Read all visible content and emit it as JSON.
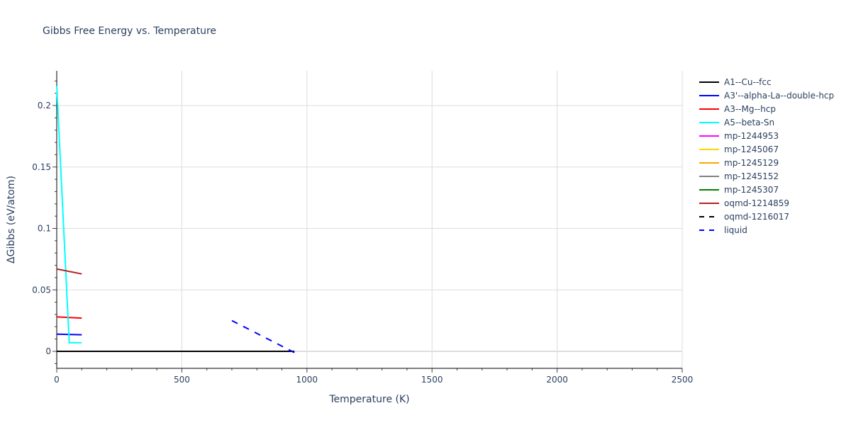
{
  "chart_data": {
    "type": "line",
    "title": "Gibbs Free Energy vs. Temperature",
    "xlabel": "Temperature (K)",
    "ylabel": "ΔGibbs (eV/atom)",
    "xlim": [
      0,
      2500
    ],
    "ylim": [
      -0.013,
      0.228
    ],
    "x_ticks": [
      0,
      500,
      1000,
      1500,
      2000,
      2500
    ],
    "x_tick_labels": [
      "0",
      "500",
      "1000",
      "1500",
      "2000",
      "2500"
    ],
    "y_ticks": [
      0,
      0.05,
      0.1,
      0.15,
      0.2
    ],
    "y_tick_labels": [
      "0",
      "0.05",
      "0.1",
      "0.15",
      "0.2"
    ],
    "grid": true,
    "legend_position": "right",
    "series": [
      {
        "name": "A1--Cu--fcc",
        "color": "#000000",
        "dash": "solid",
        "x": [
          0,
          950
        ],
        "y": [
          0,
          0
        ]
      },
      {
        "name": "A3'--alpha-La--double-hcp",
        "color": "#0000ff",
        "dash": "solid",
        "x": [
          0,
          100
        ],
        "y": [
          0.014,
          0.0135
        ]
      },
      {
        "name": "A3--Mg--hcp",
        "color": "#ff0000",
        "dash": "solid",
        "x": [
          0,
          100
        ],
        "y": [
          0.028,
          0.027
        ]
      },
      {
        "name": "A5--beta-Sn",
        "color": "#00ffff",
        "dash": "solid",
        "x": [
          0,
          50,
          100
        ],
        "y": [
          0.216,
          0.007,
          0.007
        ]
      },
      {
        "name": "mp-1244953",
        "color": "#ff00ff",
        "dash": "solid",
        "x": [],
        "y": []
      },
      {
        "name": "mp-1245067",
        "color": "#ffd700",
        "dash": "solid",
        "x": [],
        "y": []
      },
      {
        "name": "mp-1245129",
        "color": "#ffa500",
        "dash": "solid",
        "x": [],
        "y": []
      },
      {
        "name": "mp-1245152",
        "color": "#808080",
        "dash": "solid",
        "x": [],
        "y": []
      },
      {
        "name": "mp-1245307",
        "color": "#008000",
        "dash": "solid",
        "x": [],
        "y": []
      },
      {
        "name": "oqmd-1214859",
        "color": "#b22222",
        "dash": "solid",
        "x": [
          0,
          100
        ],
        "y": [
          0.067,
          0.063
        ]
      },
      {
        "name": "oqmd-1216017",
        "color": "#000000",
        "dash": "dash",
        "x": [],
        "y": []
      },
      {
        "name": "liquid",
        "color": "#0000ff",
        "dash": "dash",
        "x": [
          700,
          950
        ],
        "y": [
          0.025,
          -0.001
        ]
      }
    ]
  }
}
